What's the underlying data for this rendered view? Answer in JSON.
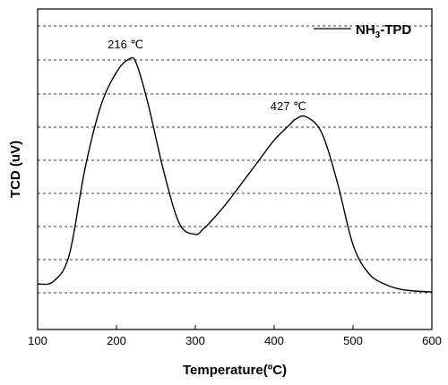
{
  "chart_data": {
    "type": "line",
    "xlabel": "Temperature(ºC)",
    "ylabel": "TCD (uV)",
    "xlim": [
      100,
      600
    ],
    "ylim": [
      0,
      1
    ],
    "x_ticks": [
      100,
      200,
      300,
      400,
      500,
      600
    ],
    "y_ticks_shown": false,
    "grid": "horizontal dashed",
    "legend": {
      "placement": "top-right"
    },
    "series": [
      {
        "name": "NH3-TPD",
        "color": "#000000",
        "x": [
          100,
          120,
          140,
          160,
          180,
          200,
          216,
          225,
          240,
          260,
          280,
          300,
          310,
          320,
          340,
          360,
          380,
          400,
          420,
          427,
          440,
          460,
          480,
          500,
          520,
          540,
          560,
          580,
          600
        ],
        "y": [
          0.03,
          0.04,
          0.14,
          0.47,
          0.71,
          0.84,
          0.89,
          0.875,
          0.72,
          0.46,
          0.26,
          0.22,
          0.24,
          0.27,
          0.34,
          0.42,
          0.5,
          0.58,
          0.64,
          0.66,
          0.67,
          0.61,
          0.42,
          0.18,
          0.07,
          0.03,
          0.01,
          0.003,
          0.0
        ]
      }
    ],
    "annotations": [
      {
        "text": "216 ℃",
        "x": 216,
        "y": 0.89
      },
      {
        "text": "427 ℃",
        "x": 427,
        "y": 0.66
      }
    ],
    "legend_label": {
      "main": "NH",
      "sub": "3",
      "rest": "-TPD"
    }
  }
}
